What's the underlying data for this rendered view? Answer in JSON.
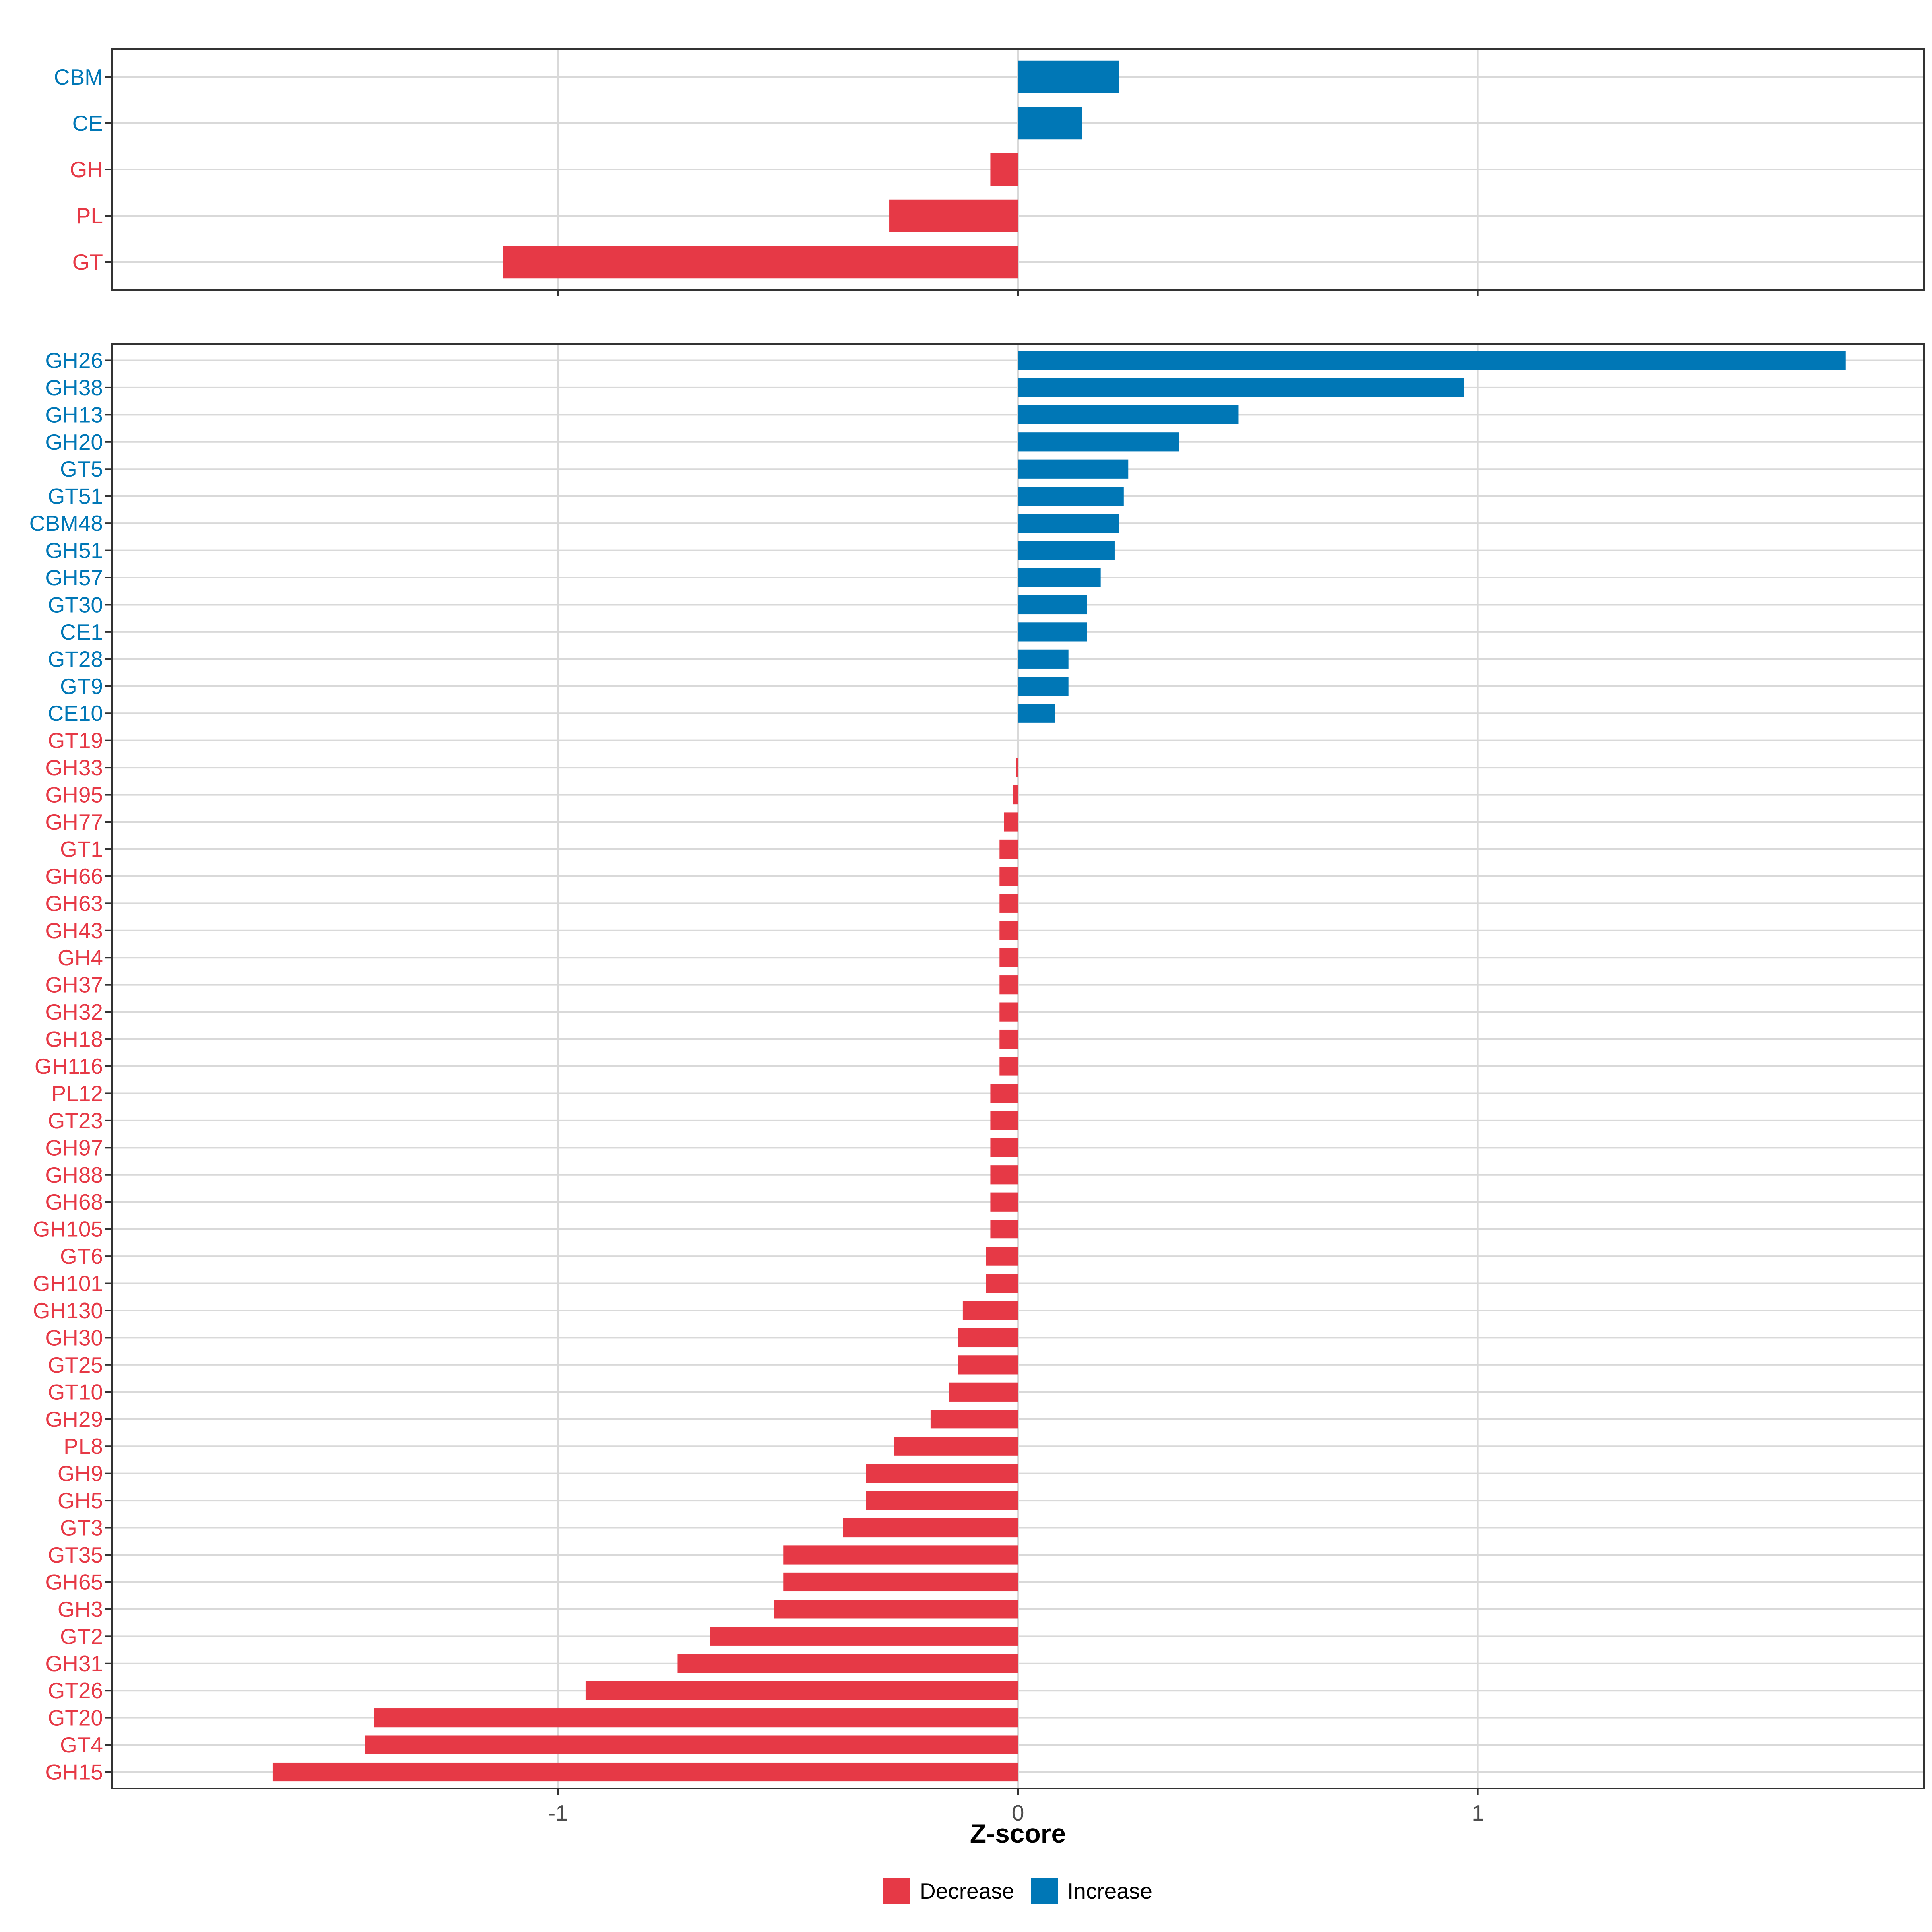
{
  "colors": {
    "decrease": "#e63946",
    "increase": "#0077b6",
    "grid": "#d9d9d9",
    "panel_border": "#333333",
    "tick_text": "#4d4d4d"
  },
  "chart_data": [
    {
      "type": "bar",
      "orientation": "horizontal",
      "panel": "top",
      "categories": [
        "CBM",
        "CE",
        "GH",
        "PL",
        "GT"
      ],
      "values": [
        0.22,
        0.14,
        -0.06,
        -0.28,
        -1.12
      ],
      "directions": [
        "Increase",
        "Increase",
        "Decrease",
        "Decrease",
        "Decrease"
      ],
      "xlim": [
        -1.97,
        1.97
      ],
      "xticks": [
        -1,
        0,
        1
      ],
      "xtick_labels": [
        "-1",
        "0",
        "1"
      ],
      "grid": true
    },
    {
      "type": "bar",
      "orientation": "horizontal",
      "panel": "bottom",
      "categories": [
        "GH26",
        "GH38",
        "GH13",
        "GH20",
        "GT5",
        "GT51",
        "CBM48",
        "GH51",
        "GH57",
        "GT30",
        "CE1",
        "GT28",
        "GT9",
        "CE10",
        "GT19",
        "GH33",
        "GH95",
        "GH77",
        "GT1",
        "GH66",
        "GH63",
        "GH43",
        "GH4",
        "GH37",
        "GH32",
        "GH18",
        "GH116",
        "PL12",
        "GT23",
        "GH97",
        "GH88",
        "GH68",
        "GH105",
        "GT6",
        "GH101",
        "GH130",
        "GH30",
        "GT25",
        "GT10",
        "GH29",
        "PL8",
        "GH9",
        "GH5",
        "GT3",
        "GT35",
        "GH65",
        "GH3",
        "GT2",
        "GH31",
        "GT26",
        "GT20",
        "GT4",
        "GH15"
      ],
      "values": [
        1.8,
        0.97,
        0.48,
        0.35,
        0.24,
        0.23,
        0.22,
        0.21,
        0.18,
        0.15,
        0.15,
        0.11,
        0.11,
        0.08,
        0.0,
        -0.005,
        -0.01,
        -0.03,
        -0.04,
        -0.04,
        -0.04,
        -0.04,
        -0.04,
        -0.04,
        -0.04,
        -0.04,
        -0.04,
        -0.06,
        -0.06,
        -0.06,
        -0.06,
        -0.06,
        -0.06,
        -0.07,
        -0.07,
        -0.12,
        -0.13,
        -0.13,
        -0.15,
        -0.19,
        -0.27,
        -0.33,
        -0.33,
        -0.38,
        -0.51,
        -0.51,
        -0.53,
        -0.67,
        -0.74,
        -0.94,
        -1.4,
        -1.42,
        -1.62
      ],
      "directions": [
        "Increase",
        "Increase",
        "Increase",
        "Increase",
        "Increase",
        "Increase",
        "Increase",
        "Increase",
        "Increase",
        "Increase",
        "Increase",
        "Increase",
        "Increase",
        "Increase",
        "Decrease",
        "Decrease",
        "Decrease",
        "Decrease",
        "Decrease",
        "Decrease",
        "Decrease",
        "Decrease",
        "Decrease",
        "Decrease",
        "Decrease",
        "Decrease",
        "Decrease",
        "Decrease",
        "Decrease",
        "Decrease",
        "Decrease",
        "Decrease",
        "Decrease",
        "Decrease",
        "Decrease",
        "Decrease",
        "Decrease",
        "Decrease",
        "Decrease",
        "Decrease",
        "Decrease",
        "Decrease",
        "Decrease",
        "Decrease",
        "Decrease",
        "Decrease",
        "Decrease",
        "Decrease",
        "Decrease",
        "Decrease",
        "Decrease",
        "Decrease",
        "Decrease"
      ],
      "xlim": [
        -1.97,
        1.97
      ],
      "xticks": [
        -1,
        0,
        1
      ],
      "xtick_labels": [
        "-1",
        "0",
        "1"
      ],
      "xlabel": "Z-score",
      "grid": true
    }
  ],
  "legend": {
    "position": "bottom",
    "items": [
      {
        "label": "Decrease",
        "color_key": "decrease"
      },
      {
        "label": "Increase",
        "color_key": "increase"
      }
    ]
  }
}
